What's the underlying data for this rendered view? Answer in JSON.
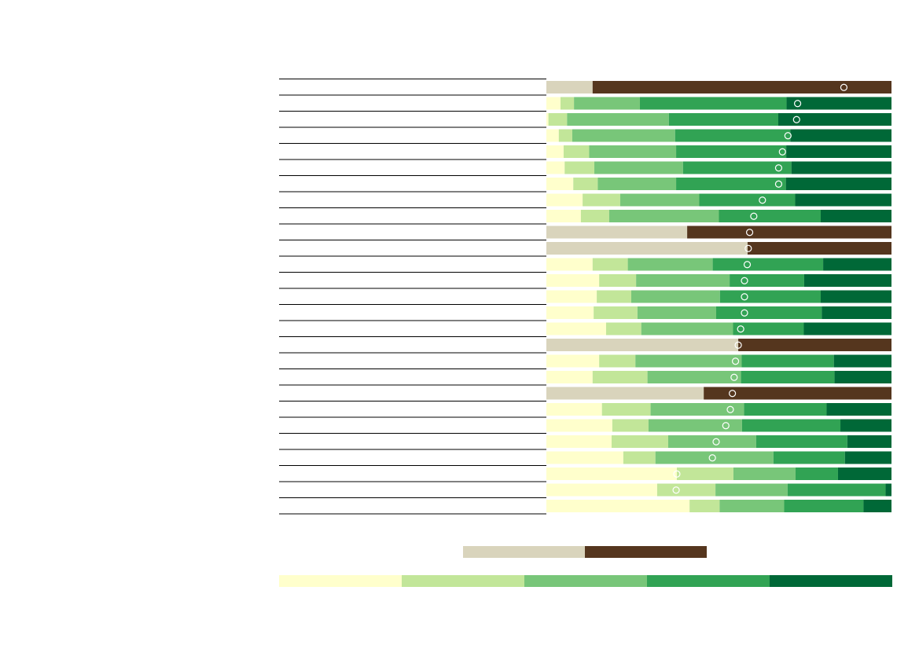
{
  "chart_data": {
    "type": "bar",
    "stacked": true,
    "orientation": "horizontal",
    "normalized": true,
    "xlim": [
      0,
      100
    ],
    "title": "",
    "xlabel": "",
    "ylabel": "",
    "categories": [
      "",
      "",
      "",
      "",
      "",
      "",
      "",
      "",
      "",
      "",
      "",
      "",
      "",
      "",
      "",
      "",
      "",
      "",
      "",
      "",
      "",
      "",
      "",
      "",
      "",
      "",
      ""
    ],
    "row_kind": [
      "binary",
      "scale",
      "scale",
      "scale",
      "scale",
      "scale",
      "scale",
      "scale",
      "scale",
      "binary",
      "binary",
      "scale",
      "scale",
      "scale",
      "scale",
      "scale",
      "binary",
      "scale",
      "scale",
      "binary",
      "scale",
      "scale",
      "scale",
      "scale",
      "scale",
      "scale",
      "scale"
    ],
    "scale_series_colors": [
      "#ffffcc",
      "#c2e699",
      "#78c679",
      "#31a354",
      "#006837"
    ],
    "binary_series_colors": [
      "#d9d4bc",
      "#55361e"
    ],
    "segments": [
      [
        13.4,
        86.6
      ],
      [
        4.1,
        3.9,
        19.1,
        42.5,
        30.4
      ],
      [
        0.6,
        5.4,
        29.5,
        31.7,
        32.8
      ],
      [
        3.6,
        3.9,
        29.8,
        33.4,
        29.3
      ],
      [
        5.0,
        7.4,
        25.2,
        31.9,
        30.5
      ],
      [
        5.3,
        8.6,
        25.7,
        31.4,
        29.0
      ],
      [
        7.8,
        7.1,
        22.7,
        31.8,
        30.6
      ],
      [
        10.5,
        10.9,
        22.9,
        27.8,
        27.9
      ],
      [
        10.0,
        8.2,
        31.8,
        29.5,
        20.5
      ],
      [
        40.8,
        59.2
      ],
      [
        58.3,
        41.7
      ],
      [
        13.4,
        10.2,
        24.6,
        32.0,
        19.8
      ],
      [
        15.3,
        10.7,
        27.1,
        21.6,
        25.3
      ],
      [
        14.6,
        10.0,
        25.7,
        29.2,
        20.5
      ],
      [
        13.7,
        12.7,
        22.8,
        30.6,
        20.2
      ],
      [
        17.3,
        10.2,
        26.6,
        20.5,
        25.4
      ],
      [
        55.6,
        44.4
      ],
      [
        15.3,
        10.5,
        30.8,
        26.7,
        16.7
      ],
      [
        13.4,
        15.9,
        27.1,
        27.1,
        16.5
      ],
      [
        45.6,
        54.4
      ],
      [
        16.1,
        14.1,
        27.1,
        23.9,
        18.8
      ],
      [
        19.1,
        10.5,
        27.1,
        28.5,
        14.8
      ],
      [
        18.9,
        16.4,
        25.5,
        26.4,
        12.8
      ],
      [
        22.3,
        9.3,
        34.2,
        20.7,
        13.5
      ],
      [
        37.8,
        16.4,
        18.0,
        12.3,
        15.5
      ],
      [
        32.1,
        16.9,
        20.9,
        28.4,
        1.7
      ],
      [
        41.5,
        8.7,
        18.7,
        23.0,
        8.1
      ]
    ],
    "marker_values": [
      86.2,
      72.8,
      72.5,
      70.0,
      68.4,
      67.3,
      67.3,
      62.6,
      60.1,
      58.9,
      58.5,
      58.2,
      57.4,
      57.4,
      57.4,
      56.3,
      55.6,
      54.8,
      54.4,
      53.9,
      53.3,
      52.0,
      49.2,
      48.1,
      37.8,
      37.6,
      0
    ],
    "marker_shown": [
      true,
      true,
      true,
      true,
      true,
      true,
      true,
      true,
      true,
      true,
      true,
      true,
      true,
      true,
      true,
      true,
      true,
      true,
      true,
      true,
      true,
      true,
      true,
      true,
      true,
      true,
      false
    ],
    "legend": {
      "binary_labels": [
        "",
        ""
      ],
      "scale_labels": [
        "",
        "",
        "",
        "",
        ""
      ]
    }
  }
}
